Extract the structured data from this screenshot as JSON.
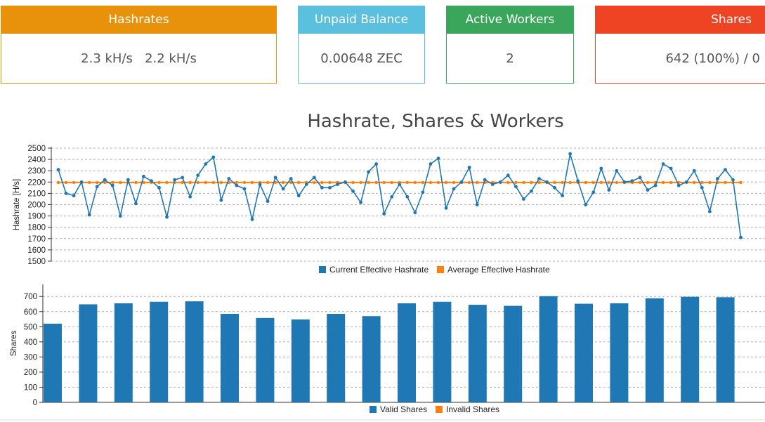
{
  "cards": [
    {
      "label": "Hashrates",
      "value": "2.3 kH/s   2.2 kH/s",
      "color": "#e8920c"
    },
    {
      "label": "Unpaid Balance",
      "value": "0.00648 ZEC",
      "color": "#5bc0de"
    },
    {
      "label": "Active Workers",
      "value": "2",
      "color": "#3aa65c"
    },
    {
      "label": "Shares",
      "value": "642 (100%) / 0",
      "color": "#ee4423"
    }
  ],
  "chart_title": "Hashrate, Shares & Workers",
  "colors": {
    "series1": "#1f77b4",
    "series2": "#ff7f0e"
  },
  "chart_data": [
    {
      "type": "line",
      "ylabel": "Hashrate [H/s]",
      "ylim": [
        1500,
        2500
      ],
      "yticks": [
        1500,
        1600,
        1700,
        1800,
        1900,
        2000,
        2100,
        2200,
        2300,
        2400,
        2500
      ],
      "grid": true,
      "legend_position": "bottom",
      "series": [
        {
          "name": "Current Effective Hashrate",
          "values": [
            2310,
            2100,
            2080,
            2200,
            1910,
            2160,
            2220,
            2170,
            1900,
            2220,
            2010,
            2250,
            2210,
            2150,
            1890,
            2220,
            2240,
            2070,
            2260,
            2360,
            2420,
            2040,
            2230,
            2170,
            2140,
            1870,
            2180,
            2030,
            2240,
            2140,
            2230,
            2080,
            2180,
            2240,
            2150,
            2150,
            2180,
            2200,
            2120,
            2020,
            2290,
            2360,
            1920,
            2070,
            2180,
            2070,
            1930,
            2110,
            2360,
            2410,
            1970,
            2140,
            2200,
            2330,
            2000,
            2220,
            2180,
            2200,
            2260,
            2160,
            2050,
            2120,
            2230,
            2200,
            2150,
            2080,
            2450,
            2210,
            2000,
            2110,
            2320,
            2130,
            2300,
            2200,
            2210,
            2240,
            2130,
            2170,
            2360,
            2320,
            2170,
            2200,
            2300,
            2150,
            1940,
            2230,
            2310,
            2220,
            1710
          ]
        },
        {
          "name": "Average Effective Hashrate",
          "values": [
            2196,
            2196,
            2196,
            2196,
            2196,
            2196,
            2196,
            2196,
            2196,
            2196,
            2196,
            2196,
            2196,
            2196,
            2196,
            2196,
            2196,
            2196,
            2196,
            2196,
            2196,
            2196,
            2196,
            2196,
            2196,
            2196,
            2196,
            2196,
            2196,
            2196,
            2196,
            2196,
            2196,
            2196,
            2196,
            2196,
            2196,
            2196,
            2196,
            2196,
            2196,
            2196,
            2196,
            2196,
            2196,
            2196,
            2196,
            2196,
            2196,
            2196,
            2196,
            2196,
            2196,
            2196,
            2196,
            2196,
            2196,
            2196,
            2196,
            2196,
            2196,
            2196,
            2196,
            2196,
            2196,
            2196,
            2196,
            2196,
            2196,
            2196,
            2196,
            2196,
            2196,
            2196,
            2196,
            2196,
            2196,
            2196,
            2196,
            2196,
            2196,
            2196,
            2196,
            2196,
            2196,
            2196,
            2196,
            2196,
            2196
          ]
        }
      ]
    },
    {
      "type": "bar",
      "ylabel": "Shares",
      "ylim": [
        0,
        780
      ],
      "yticks": [
        0,
        100,
        200,
        300,
        400,
        500,
        600,
        700
      ],
      "grid": true,
      "legend_position": "bottom",
      "series": [
        {
          "name": "Valid Shares",
          "values": [
            520,
            648,
            655,
            665,
            668,
            585,
            558,
            548,
            585,
            570,
            655,
            665,
            645,
            638,
            702,
            652,
            655,
            688,
            698,
            695
          ]
        },
        {
          "name": "Invalid Shares",
          "values": [
            0,
            0,
            0,
            0,
            0,
            0,
            0,
            0,
            0,
            0,
            0,
            0,
            0,
            0,
            0,
            0,
            0,
            0,
            0,
            0
          ]
        }
      ]
    }
  ]
}
